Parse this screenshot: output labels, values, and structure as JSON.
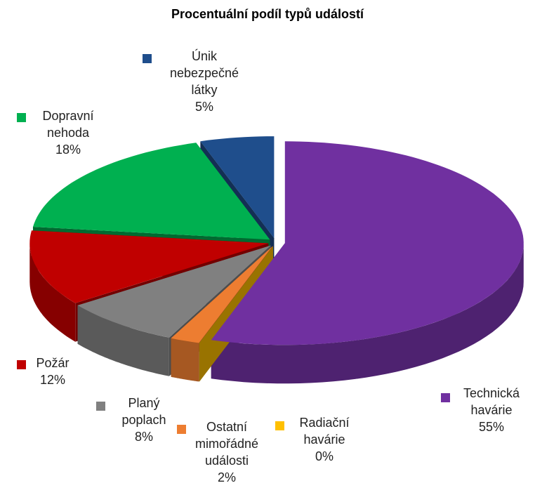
{
  "chart_data": {
    "type": "pie",
    "title": "Procentuální podíl typů událostí",
    "categories": [
      "Technická havárie",
      "Radiační havárie",
      "Ostatní mimořádné události",
      "Planý poplach",
      "Požár",
      "Dopravní nehoda",
      "Únik nebezpečné látky"
    ],
    "values": [
      55,
      0,
      2,
      8,
      12,
      18,
      5
    ],
    "value_labels": [
      "55%",
      "0%",
      "2%",
      "8%",
      "12%",
      "18%",
      "5%"
    ],
    "colors": [
      "#7030a0",
      "#ffc000",
      "#ed7d31",
      "#808080",
      "#c00000",
      "#00b050",
      "#1f4e8c"
    ]
  }
}
